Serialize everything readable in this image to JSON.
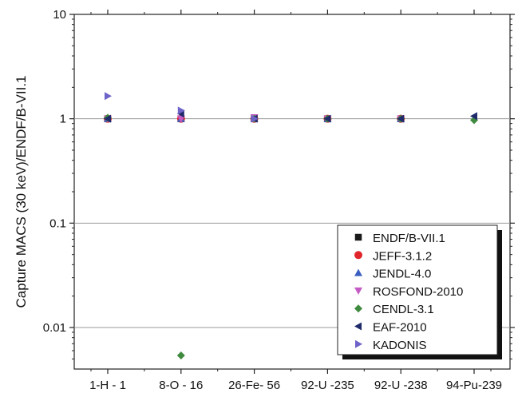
{
  "chart_data": {
    "type": "scatter",
    "title": "",
    "xlabel": "",
    "ylabel": "Capture MACS (30 keV)/ENDF/B-VII.1",
    "yscale": "log",
    "ylim": [
      0.004,
      10
    ],
    "y_ticks": [
      {
        "value": 0.01,
        "label": "0.01"
      },
      {
        "value": 0.1,
        "label": "0.1"
      },
      {
        "value": 1,
        "label": "1"
      },
      {
        "value": 10,
        "label": "10"
      }
    ],
    "categories": [
      "1-H -  1",
      "8-O - 16",
      "26-Fe- 56",
      "92-U -235",
      "92-U -238",
      "94-Pu-239"
    ],
    "grid": "horizontal at major ticks",
    "legend_position": "bottom-right",
    "series": [
      {
        "name": "ENDF/B-VII.1",
        "marker": "square",
        "color": "#1a1a1a",
        "values": [
          1.0,
          1.0,
          1.0,
          1.0,
          1.0,
          null
        ]
      },
      {
        "name": "JEFF-3.1.2",
        "marker": "circle",
        "color": "#e0262b",
        "values": [
          1.0,
          1.0,
          1.0,
          1.0,
          1.0,
          null
        ]
      },
      {
        "name": "JENDL-4.0",
        "marker": "triangle-up",
        "color": "#3b5fbf",
        "values": [
          1.0,
          1.0,
          1.0,
          1.0,
          1.0,
          null
        ]
      },
      {
        "name": "ROSFOND-2010",
        "marker": "triangle-down",
        "color": "#c45bc4",
        "values": [
          1.0,
          1.0,
          1.03,
          1.0,
          1.0,
          null
        ]
      },
      {
        "name": "CENDL-3.1",
        "marker": "diamond",
        "color": "#3f8a3f",
        "values": [
          1.02,
          0.0054,
          1.0,
          1.0,
          1.0,
          0.97
        ]
      },
      {
        "name": "EAF-2010",
        "marker": "triangle-left",
        "color": "#1f2a6b",
        "values": [
          1.0,
          1.12,
          1.0,
          1.0,
          1.0,
          1.06
        ]
      },
      {
        "name": "KADONIS",
        "marker": "triangle-right",
        "color": "#6e63c9",
        "values": [
          1.65,
          1.2,
          1.0,
          null,
          null,
          null
        ]
      }
    ]
  }
}
